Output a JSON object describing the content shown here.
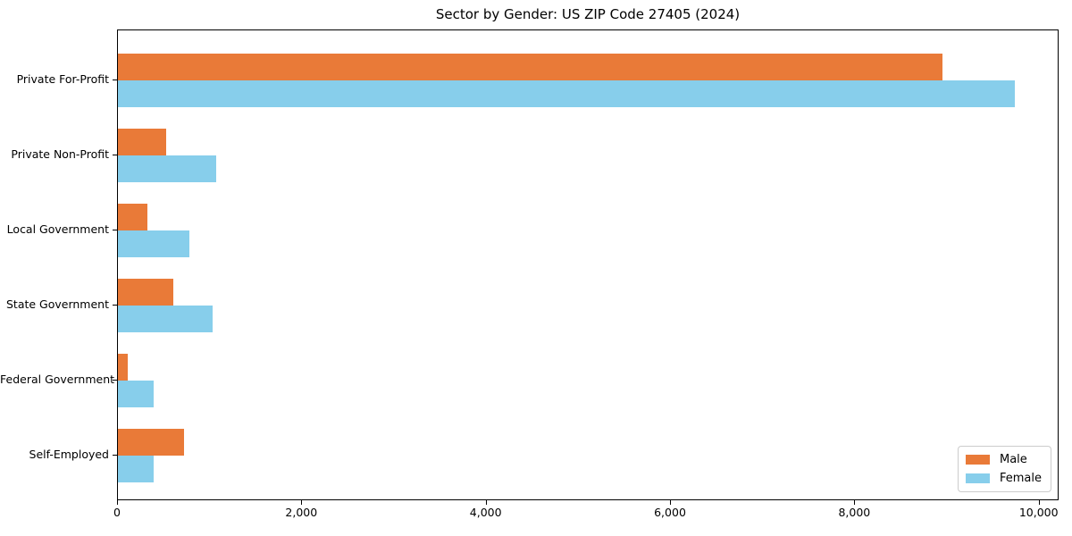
{
  "title": "Sector by Gender: US ZIP Code 27405 (2024)",
  "chart_data": {
    "type": "bar",
    "orientation": "horizontal",
    "title": "Sector by Gender: US ZIP Code 27405 (2024)",
    "categories": [
      "Private For-Profit",
      "Private Non-Profit",
      "Local Government",
      "State Government",
      "Federal Government",
      "Self-Employed"
    ],
    "series": [
      {
        "name": "Male",
        "color": "#E97A38",
        "values": [
          8950,
          520,
          320,
          600,
          110,
          720
        ]
      },
      {
        "name": "Female",
        "color": "#87CEEB",
        "values": [
          9730,
          1070,
          780,
          1030,
          390,
          390
        ]
      }
    ],
    "xlabel": "",
    "ylabel": "",
    "xlim": [
      0,
      10216
    ],
    "xticks": [
      {
        "value": 0,
        "label": "0"
      },
      {
        "value": 2000,
        "label": "2,000"
      },
      {
        "value": 4000,
        "label": "4,000"
      },
      {
        "value": 6000,
        "label": "6,000"
      },
      {
        "value": 8000,
        "label": "8,000"
      },
      {
        "value": 10000,
        "label": "10,000"
      }
    ],
    "grid": false,
    "background": "#ffffff",
    "axis_color": "#000000",
    "legend": {
      "position": "lower right",
      "entries": [
        "Male",
        "Female"
      ]
    }
  }
}
